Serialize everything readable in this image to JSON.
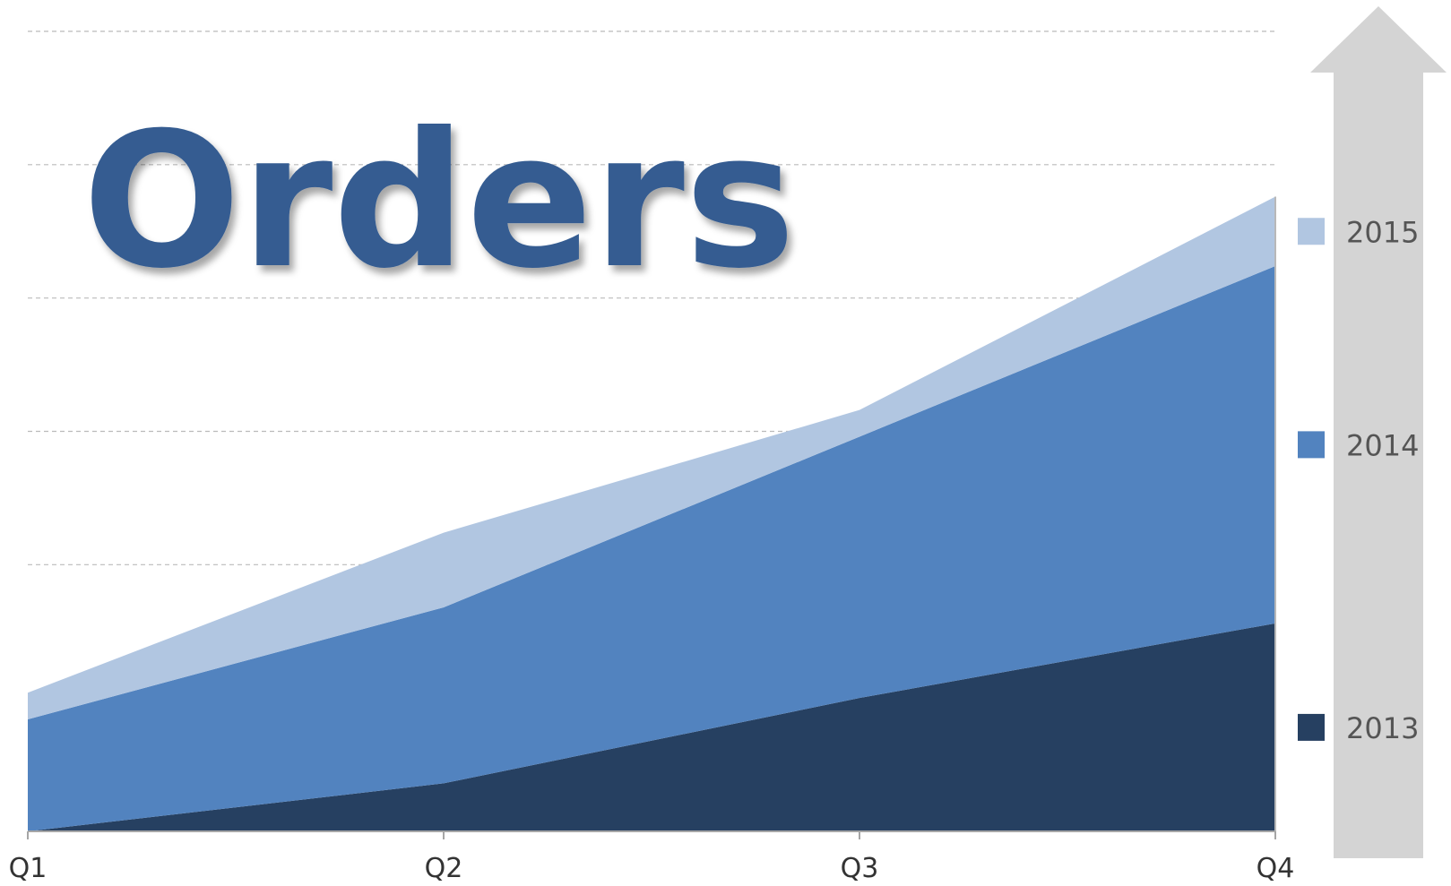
{
  "chart_data": {
    "type": "area",
    "stacked": true,
    "title": "Orders",
    "categories": [
      "Q1",
      "Q2",
      "Q3",
      "Q4"
    ],
    "series": [
      {
        "name": "2013",
        "values": [
          0,
          9,
          25,
          39
        ]
      },
      {
        "name": "2014",
        "values": [
          21,
          33,
          49,
          67
        ]
      },
      {
        "name": "2015",
        "values": [
          5,
          14,
          5,
          13
        ]
      }
    ],
    "xlabel": "",
    "ylabel": "",
    "ylim": [
      0,
      150
    ],
    "grid": true,
    "legend_placement": "right",
    "colors": {
      "2013": "#264061",
      "2014": "#5283bf",
      "2015": "#b1c6e1",
      "title": "#345c91",
      "arrow": "#d4d4d4",
      "grid": "#bbbbbb"
    }
  }
}
